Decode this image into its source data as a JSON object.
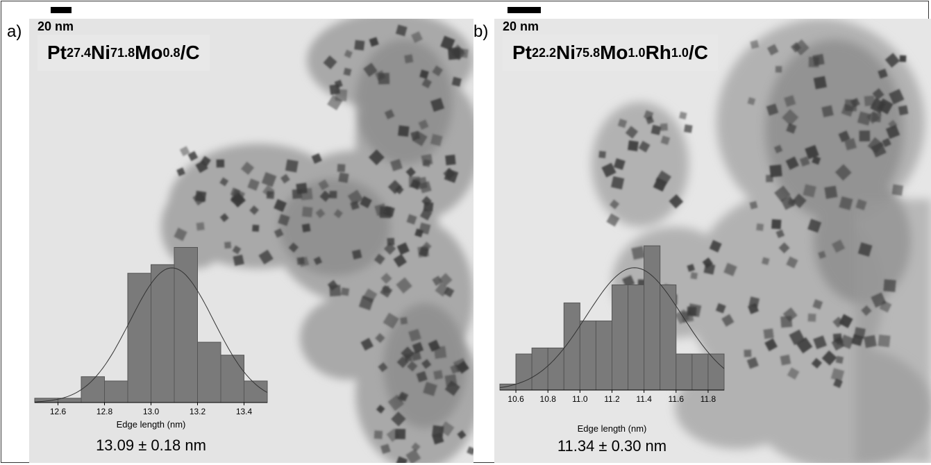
{
  "panels": [
    {
      "letter": "a)",
      "scale_label": "20 nm",
      "formula": [
        {
          "t": "Pt"
        },
        {
          "s": "27.4"
        },
        {
          "t": "Ni"
        },
        {
          "s": "71.8"
        },
        {
          "t": "Mo"
        },
        {
          "s": "0.8"
        },
        {
          "t": "/C"
        }
      ],
      "result": "13.09 ± 0.18 nm"
    },
    {
      "letter": "b)",
      "scale_label": "20 nm",
      "formula": [
        {
          "t": "Pt"
        },
        {
          "s": "22.2"
        },
        {
          "t": "Ni"
        },
        {
          "s": "75.8"
        },
        {
          "t": "Mo"
        },
        {
          "s": "1.0"
        },
        {
          "t": "Rh"
        },
        {
          "s": "1.0"
        },
        {
          "t": "/C"
        }
      ],
      "result": "11.34 ± 0.30 nm"
    }
  ],
  "chart_data": [
    {
      "type": "bar",
      "subtype": "histogram",
      "xlabel": "Edge length (nm)",
      "xlim": [
        12.5,
        13.5
      ],
      "xticks": [
        "12.6",
        "12.8",
        "13.0",
        "13.2",
        "13.4"
      ],
      "bin_width": 0.1,
      "bin_starts": [
        12.5,
        12.6,
        12.7,
        12.8,
        12.9,
        13.0,
        13.1,
        13.2,
        13.3,
        13.4
      ],
      "values": [
        1,
        1,
        6,
        5,
        30,
        32,
        36,
        14,
        11,
        5
      ],
      "fit": {
        "type": "gaussian",
        "mean": 13.09,
        "sd": 0.18
      },
      "colors": {
        "bar": "#7a7a7a",
        "edge": "#555555"
      }
    },
    {
      "type": "bar",
      "subtype": "histogram",
      "xlabel": "Edge length (nm)",
      "xlim": [
        10.5,
        11.9
      ],
      "xticks": [
        "10.6",
        "10.8",
        "11.0",
        "11.2",
        "11.4",
        "11.6",
        "11.8"
      ],
      "bin_width": 0.1,
      "bin_starts": [
        10.5,
        10.6,
        10.7,
        10.8,
        10.9,
        11.0,
        11.1,
        11.2,
        11.3,
        11.4,
        11.5,
        11.6,
        11.7,
        11.8
      ],
      "values": [
        2,
        12,
        14,
        14,
        29,
        23,
        23,
        35,
        35,
        48,
        35,
        12,
        12,
        12
      ],
      "fit": {
        "type": "gaussian",
        "mean": 11.34,
        "sd": 0.3
      },
      "colors": {
        "bar": "#7a7a7a",
        "edge": "#555555"
      }
    }
  ]
}
